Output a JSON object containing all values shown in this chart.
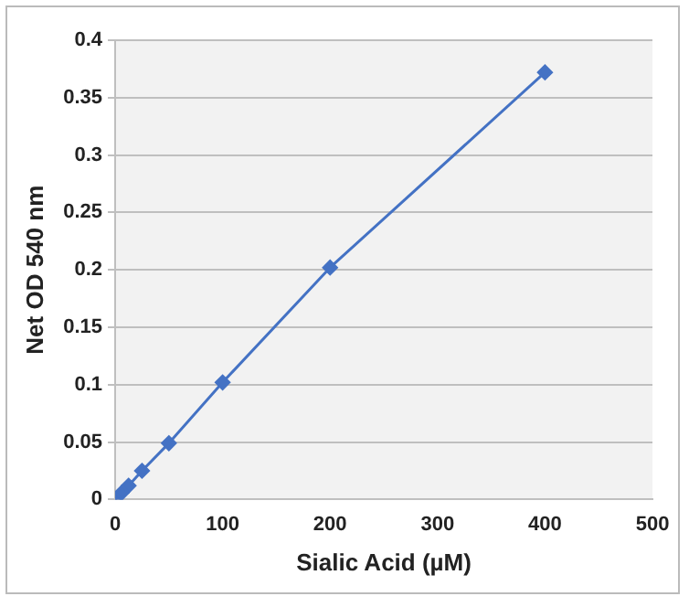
{
  "chart_data": {
    "type": "line",
    "xlabel": "Sialic Acid (µM)",
    "ylabel": "Net OD 540 nm",
    "series": [
      {
        "color": "#4472c4",
        "x": [
          0,
          6.25,
          12.5,
          25,
          50,
          100,
          200,
          400
        ],
        "values": [
          0,
          0.006,
          0.012,
          0.025,
          0.049,
          0.102,
          0.202,
          0.372
        ]
      }
    ],
    "xlim": [
      0,
      500
    ],
    "xticks": [
      0,
      100,
      200,
      300,
      400,
      500
    ],
    "ylim": [
      0,
      0.4
    ],
    "yticks": [
      0,
      0.05,
      0.1,
      0.15,
      0.2,
      0.25,
      0.3,
      0.35,
      0.4
    ],
    "grid": "y",
    "legend": false,
    "marker": "diamond",
    "line_style": "solid"
  }
}
